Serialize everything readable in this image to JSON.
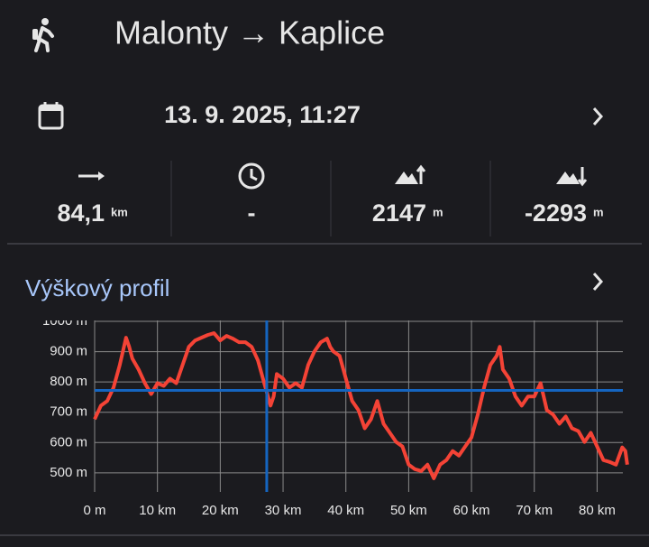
{
  "header": {
    "title": "Malonty → Kaplice"
  },
  "date": {
    "text": "13. 9. 2025, 11:27"
  },
  "stats": [
    {
      "value": "84,1",
      "unit": "km"
    },
    {
      "value": "-"
    },
    {
      "value": "2147",
      "unit": "m"
    },
    {
      "value": "-2293",
      "unit": "m"
    }
  ],
  "profile": {
    "title": "Výškový profil"
  },
  "chart_data": {
    "type": "line",
    "x": [
      0,
      1,
      2,
      3,
      4,
      5,
      5.5,
      6,
      7,
      8,
      9,
      10,
      11,
      12,
      13,
      14,
      15,
      16,
      17,
      18,
      19,
      20,
      21,
      22,
      23,
      24,
      25,
      26,
      27,
      28,
      28.5,
      29,
      30,
      31,
      32,
      33,
      34,
      35,
      36,
      37,
      37.5,
      38,
      39,
      40,
      41,
      42,
      43,
      44,
      45,
      46,
      47,
      48,
      49,
      50,
      51,
      52,
      53,
      54,
      55,
      56,
      57,
      58,
      59,
      60,
      61,
      62,
      63,
      64,
      64.5,
      65,
      66,
      67,
      68,
      69,
      70,
      71,
      72,
      73,
      74,
      75,
      76,
      77,
      78,
      79,
      80,
      81,
      82,
      83,
      84,
      84.5,
      84.8
    ],
    "series": [
      {
        "color": "#f44336",
        "values": [
          677,
          722,
          737,
          781,
          856,
          946,
          916,
          877,
          841,
          796,
          760,
          796,
          787,
          811,
          796,
          856,
          916,
          937,
          946,
          955,
          961,
          937,
          952,
          943,
          931,
          931,
          916,
          871,
          796,
          722,
          752,
          826,
          811,
          781,
          796,
          781,
          856,
          901,
          931,
          943,
          916,
          901,
          886,
          811,
          737,
          707,
          647,
          677,
          737,
          662,
          632,
          602,
          587,
          527,
          512,
          506,
          527,
          482,
          527,
          542,
          572,
          557,
          587,
          617,
          692,
          781,
          856,
          886,
          916,
          841,
          811,
          752,
          722,
          752,
          752,
          796,
          707,
          692,
          662,
          686,
          647,
          638,
          602,
          632,
          587,
          542,
          536,
          527,
          584,
          572,
          527
        ]
      }
    ],
    "xlim": [
      0,
      84.1
    ],
    "ylim": [
      437,
      1003
    ],
    "xticks": [
      {
        "value": 0,
        "label": "0 m"
      },
      {
        "value": 10,
        "label": "10 km"
      },
      {
        "value": 20,
        "label": "20 km"
      },
      {
        "value": 30,
        "label": "30 km"
      },
      {
        "value": 40,
        "label": "40 km"
      },
      {
        "value": 50,
        "label": "50 km"
      },
      {
        "value": 60,
        "label": "60 km"
      },
      {
        "value": 70,
        "label": "70 km"
      },
      {
        "value": 80,
        "label": "80 km"
      }
    ],
    "yticks": [
      {
        "value": 500,
        "label": "500 m"
      },
      {
        "value": 600,
        "label": "600 m"
      },
      {
        "value": 700,
        "label": "700 m"
      },
      {
        "value": 800,
        "label": "800 m"
      },
      {
        "value": 900,
        "label": "900 m"
      },
      {
        "value": 1000,
        "label": "1000 m"
      }
    ],
    "grid": true,
    "cursor": {
      "x": 27.4,
      "y": 772,
      "color": "#1565c0"
    }
  }
}
